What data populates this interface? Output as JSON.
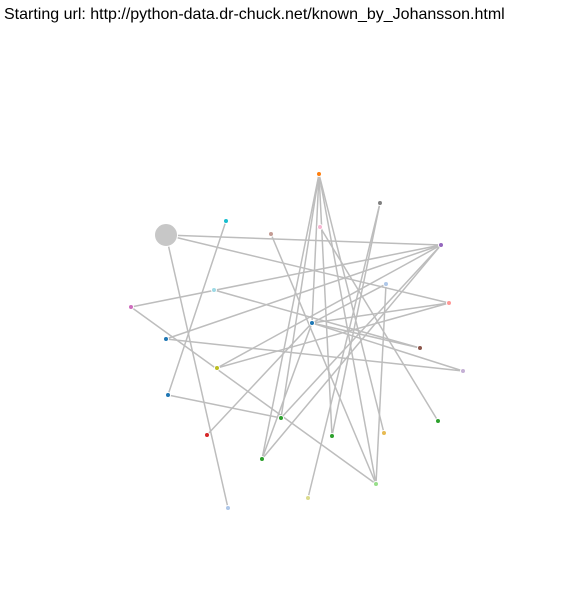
{
  "page": {
    "starting_url_label": "Starting url: http://python-data.dr-chuck.net/known_by_Johansson.html"
  },
  "graph": {
    "link_color": "#bdbdbd",
    "nodes": [
      {
        "id": "n0",
        "color": "#c7c7c7",
        "size": 3
      },
      {
        "id": "n1",
        "color": "#ff7f0e",
        "size": 1
      },
      {
        "id": "n2",
        "color": "#7f7f7f",
        "size": 1
      },
      {
        "id": "n3",
        "color": "#17becf",
        "size": 1
      },
      {
        "id": "n4",
        "color": "#c49c94",
        "size": 1
      },
      {
        "id": "n5",
        "color": "#f7b6d2",
        "size": 1
      },
      {
        "id": "n6",
        "color": "#9467bd",
        "size": 1
      },
      {
        "id": "n7",
        "color": "#aec7e8",
        "size": 1
      },
      {
        "id": "n8",
        "color": "#9edae5",
        "size": 1
      },
      {
        "id": "n9",
        "color": "#ff9896",
        "size": 1
      },
      {
        "id": "n10",
        "color": "#ce6dbd",
        "size": 1
      },
      {
        "id": "n11",
        "color": "#1f77b4",
        "size": 1
      },
      {
        "id": "n12",
        "color": "#1f77b4",
        "size": 1
      },
      {
        "id": "n13",
        "color": "#8c564b",
        "size": 1
      },
      {
        "id": "n14",
        "color": "#bcbd22",
        "size": 1
      },
      {
        "id": "n15",
        "color": "#c5b0d5",
        "size": 1
      },
      {
        "id": "n16",
        "color": "#1f77b4",
        "size": 1
      },
      {
        "id": "n17",
        "color": "#2ca02c",
        "size": 1
      },
      {
        "id": "n18",
        "color": "#d62728",
        "size": 1
      },
      {
        "id": "n19",
        "color": "#e7ba52",
        "size": 1
      },
      {
        "id": "n20",
        "color": "#2ca02c",
        "size": 1
      },
      {
        "id": "n21",
        "color": "#2ca02c",
        "size": 1
      },
      {
        "id": "n22",
        "color": "#2ca02c",
        "size": 1
      },
      {
        "id": "n23",
        "color": "#98df8a",
        "size": 1
      },
      {
        "id": "n24",
        "color": "#dbdb8d",
        "size": 1
      },
      {
        "id": "n25",
        "color": "#aec7e8",
        "size": 1
      }
    ],
    "links": [
      [
        "n0",
        "n6"
      ],
      [
        "n0",
        "n9"
      ],
      [
        "n0",
        "n25"
      ],
      [
        "n1",
        "n22"
      ],
      [
        "n1",
        "n21"
      ],
      [
        "n1",
        "n20"
      ],
      [
        "n1",
        "n23"
      ],
      [
        "n1",
        "n19"
      ],
      [
        "n1",
        "n11"
      ],
      [
        "n2",
        "n24"
      ],
      [
        "n2",
        "n20"
      ],
      [
        "n3",
        "n16"
      ],
      [
        "n4",
        "n23"
      ],
      [
        "n5",
        "n17"
      ],
      [
        "n6",
        "n10"
      ],
      [
        "n6",
        "n12"
      ],
      [
        "n6",
        "n22"
      ],
      [
        "n6",
        "n21"
      ],
      [
        "n6",
        "n14"
      ],
      [
        "n7",
        "n11"
      ],
      [
        "n7",
        "n23"
      ],
      [
        "n8",
        "n13"
      ],
      [
        "n9",
        "n14"
      ],
      [
        "n9",
        "n11"
      ],
      [
        "n10",
        "n23"
      ],
      [
        "n11",
        "n15"
      ],
      [
        "n11",
        "n13"
      ],
      [
        "n11",
        "n18"
      ],
      [
        "n11",
        "n22"
      ],
      [
        "n12",
        "n15"
      ],
      [
        "n16",
        "n21"
      ]
    ]
  }
}
